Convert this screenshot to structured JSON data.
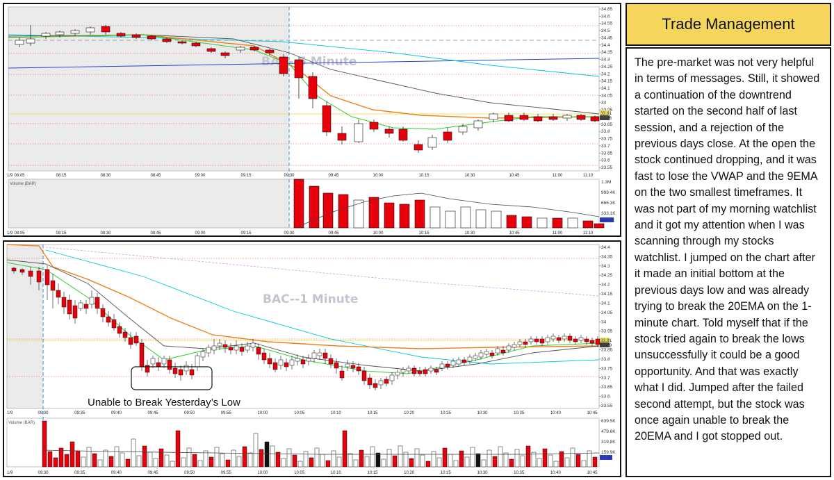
{
  "panel": {
    "title": "Trade Management",
    "text": "The pre-market was not very helpful in terms of messages. Still, it showed a continuation of the downtrend started on the second half of last session, and a rejection of the previous days close. At the open the stock continued dropping, and it was fast to lose the VWAP and the 9EMA on the two smallest timeframes. It was not part of my morning watchlist and it got my attention when I was scanning through my stocks watchlist. I jumped on the chart after it made an initial bottom at the previous days low and was already trying to break the 20EMA on the 1-minute chart. Told myself that if the stock tried again to break the lows unsuccessfully it could be a good opportunity. And that was exactly what I did. Jumped after the failed second attempt, but the stock was once again unable to break the 20EMA and I got stopped out."
  },
  "top_chart": {
    "watermark": "BAC--5 Minute",
    "date_label": "1/9",
    "price_ticks": [
      "34.65",
      "34.6",
      "34.55",
      "34.5",
      "34.45",
      "34.4",
      "34.35",
      "34.3",
      "34.25",
      "34.2",
      "34.15",
      "34.1",
      "34.05",
      "34",
      "33.95",
      "33.9",
      "33.85",
      "33.8",
      "33.75",
      "33.7",
      "33.65",
      "33.6",
      "33.55"
    ],
    "price_badges": [
      "33.91",
      "33.86"
    ],
    "time_labels": [
      "08:05",
      "08:15",
      "08:30",
      "08:45",
      "09:00",
      "09:15",
      "09:30",
      "09:45",
      "10:00",
      "10:15",
      "10:30",
      "10:45",
      "11:00",
      "11:10"
    ],
    "volume_title": "Volume (BAR)",
    "volume_ticks": [
      "1.3M",
      "999.4K",
      "666.3K",
      "333.1K"
    ],
    "volume_badge": "123.0K",
    "colors": {
      "up": "#ffffff",
      "down": "#e8000b",
      "ema9": "#2ecc2e",
      "ema20": "#f07f1a",
      "ema_long": "#555555",
      "vwap": "#2a3fd0",
      "level": "#00c8d8",
      "premarket_bg": "#ebebeb"
    }
  },
  "bottom_chart": {
    "watermark": "BAC--1 Minute",
    "date_label": "1/9",
    "price_ticks": [
      "34.4",
      "34.35",
      "34.3",
      "34.25",
      "34.2",
      "34.15",
      "34.1",
      "34.05",
      "34",
      "33.95",
      "33.9",
      "33.85",
      "33.8",
      "33.75",
      "33.7",
      "33.65",
      "33.6",
      "33.55"
    ],
    "price_badges": [
      "33.91",
      "33.89"
    ],
    "time_labels": [
      "09:30",
      "09:35",
      "09:40",
      "09:45",
      "09:50",
      "09:55",
      "10:00",
      "10:05",
      "10:10",
      "10:15",
      "10:20",
      "10:25",
      "10:30",
      "10:35",
      "10:40",
      "10:45"
    ],
    "annotation": "Unable to Break Yesterday’s Low",
    "volume_title": "Volume (BAR)",
    "volume_ticks": [
      "639.5K",
      "479.6K",
      "319.8K",
      "159.9K"
    ],
    "volume_badge": "77.4K"
  }
}
